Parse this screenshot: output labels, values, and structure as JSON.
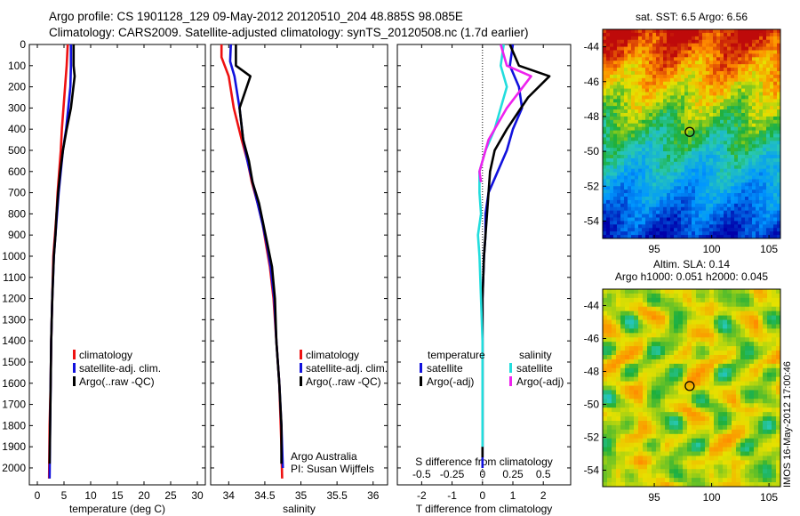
{
  "header": {
    "line1": "Argo profile: CS 1901128_129 09-May-2012 20120510_204 48.885S 98.085E",
    "line2": "Climatology: CARS2009. Satellite-adjusted climatology: synTS_20120508.nc (1.7d earlier)"
  },
  "colors": {
    "climatology": "#ee1111",
    "satellite": "#1111dd",
    "argo": "#000000",
    "cyan": "#22dddd",
    "magenta": "#ee22ee"
  },
  "imos_label": "IMOS 16-May-2012 17:00:46",
  "chart_data": [
    {
      "id": "temperature",
      "type": "line",
      "xlabel": "temperature (deg C)",
      "xlim": [
        -1.5,
        31.5
      ],
      "ylim": [
        2080,
        0
      ],
      "y_reversed": true,
      "xticks": [
        0,
        5,
        10,
        15,
        20,
        25,
        30
      ],
      "yticks": [
        0,
        100,
        200,
        300,
        400,
        500,
        600,
        700,
        800,
        900,
        1000,
        1100,
        1200,
        1300,
        1400,
        1500,
        1600,
        1700,
        1800,
        1900,
        2000
      ],
      "series": [
        {
          "name": "climatology",
          "color": "#ee1111",
          "x": [
            5.7,
            5.5,
            5.2,
            4.9,
            4.6,
            4.4,
            4.1,
            3.8,
            3.6,
            3.3,
            3.0,
            2.8,
            2.6,
            2.5,
            2.3,
            2.2
          ],
          "y": [
            0,
            100,
            200,
            300,
            400,
            500,
            600,
            700,
            800,
            900,
            1000,
            1200,
            1400,
            1600,
            1800,
            2050
          ]
        },
        {
          "name": "satellite-adj. clim.",
          "color": "#1111dd",
          "x": [
            6.3,
            6.3,
            6.2,
            5.8,
            5.4,
            4.8,
            4.4,
            4.0,
            3.7,
            3.4,
            3.1,
            2.8,
            2.6,
            2.5,
            2.4,
            2.3
          ],
          "y": [
            0,
            100,
            200,
            300,
            400,
            500,
            600,
            700,
            800,
            900,
            1000,
            1200,
            1400,
            1600,
            1800,
            2050
          ]
        },
        {
          "name": "Argo(..raw -QC)",
          "color": "#000000",
          "x": [
            6.8,
            6.8,
            7.0,
            6.3,
            5.5,
            4.8,
            4.3,
            3.9,
            3.6,
            3.4,
            3.1,
            2.8,
            2.6,
            2.5,
            2.4,
            2.3
          ],
          "y": [
            0,
            100,
            150,
            300,
            400,
            500,
            600,
            700,
            800,
            900,
            1000,
            1200,
            1400,
            1600,
            1800,
            1980
          ]
        }
      ],
      "legend": [
        "climatology",
        "satellite-adj. clim.",
        "Argo(..raw -QC)"
      ]
    },
    {
      "id": "salinity",
      "type": "line",
      "xlabel": "salinity",
      "xlim": [
        33.75,
        36.2
      ],
      "ylim": [
        2080,
        0
      ],
      "y_reversed": true,
      "xticks": [
        34,
        34.5,
        35,
        35.5,
        36
      ],
      "series": [
        {
          "name": "climatology",
          "color": "#ee1111",
          "x": [
            33.9,
            33.9,
            34.0,
            34.07,
            34.18,
            34.26,
            34.32,
            34.4,
            34.47,
            34.52,
            34.57,
            34.62,
            34.66,
            34.7,
            34.72,
            34.73,
            34.74
          ],
          "y": [
            0,
            60,
            150,
            300,
            450,
            550,
            650,
            750,
            850,
            950,
            1050,
            1200,
            1400,
            1600,
            1800,
            1900,
            2050
          ]
        },
        {
          "name": "satellite-adj. clim.",
          "color": "#1111dd",
          "x": [
            34.03,
            34.02,
            34.08,
            34.15,
            34.2,
            34.26,
            34.33,
            34.4,
            34.47,
            34.53,
            34.58,
            34.63,
            34.66,
            34.7,
            34.73,
            34.74,
            34.75
          ],
          "y": [
            0,
            80,
            150,
            300,
            450,
            550,
            650,
            750,
            850,
            950,
            1050,
            1200,
            1400,
            1600,
            1800,
            1900,
            2000
          ]
        },
        {
          "name": "Argo(..raw -QC)",
          "color": "#000000",
          "x": [
            34.1,
            34.1,
            34.3,
            34.15,
            34.2,
            34.28,
            34.33,
            34.42,
            34.48,
            34.54,
            34.6,
            34.64,
            34.66,
            34.7,
            34.73,
            34.73
          ],
          "y": [
            0,
            100,
            150,
            300,
            450,
            550,
            650,
            750,
            850,
            950,
            1050,
            1200,
            1400,
            1600,
            1800,
            1980
          ]
        }
      ],
      "legend": [
        "climatology",
        "satellite-adj. clim.",
        "Argo(..raw -QC)"
      ],
      "annotations": [
        "Argo Australia",
        "PI: Susan Wijffels"
      ]
    },
    {
      "id": "difference",
      "type": "line",
      "xlabel": "T difference from climatology",
      "xlabel_top": "S difference from climatology",
      "xlim": [
        -2.8,
        2.9
      ],
      "ylim": [
        2080,
        0
      ],
      "y_reversed": true,
      "xticks": [
        -2,
        -1,
        0,
        1,
        2
      ],
      "xticks_s": [
        -0.5,
        -0.25,
        0,
        0.25,
        0.5
      ],
      "series": [
        {
          "name": "temperature satellite",
          "color": "#1111dd",
          "x": [
            1.0,
            0.9,
            1.2,
            1.3,
            1.0,
            0.8,
            0.5,
            0.2,
            0.1,
            0.1,
            0.05,
            0.0,
            0.0,
            0.0,
            0.0,
            0.0
          ],
          "y": [
            0,
            100,
            200,
            300,
            400,
            500,
            600,
            700,
            800,
            900,
            1000,
            1200,
            1400,
            1600,
            1800,
            2000
          ]
        },
        {
          "name": "temperature Argo(-adj)",
          "color": "#000000",
          "x": [
            0.9,
            1.2,
            2.2,
            1.5,
            0.8,
            0.4,
            0.25,
            0.2,
            0.15,
            0.1,
            0.05,
            0.0,
            0.0,
            0.0,
            0.0,
            0.0
          ],
          "y": [
            0,
            100,
            150,
            250,
            400,
            500,
            600,
            700,
            800,
            900,
            1000,
            1200,
            1400,
            1600,
            1800,
            1950
          ]
        },
        {
          "name": "salinity satellite",
          "color": "#22dddd",
          "x": [
            0.7,
            0.6,
            0.8,
            0.6,
            0.4,
            0.1,
            -0.1,
            -0.1,
            -0.05,
            -0.15,
            -0.1,
            -0.05,
            0.0,
            0.0,
            0.0,
            0.0
          ],
          "y": [
            0,
            100,
            200,
            300,
            400,
            500,
            600,
            700,
            800,
            900,
            1000,
            1200,
            1400,
            1600,
            1800,
            1900
          ]
        },
        {
          "name": "salinity Argo(-adj)",
          "color": "#ee22ee",
          "x": [
            0.6,
            0.8,
            1.6,
            0.8,
            0.2,
            0.0,
            -0.1,
            -0.05
          ],
          "y": [
            0,
            100,
            150,
            300,
            450,
            550,
            600,
            650
          ]
        }
      ],
      "legend_titles": [
        "temperature",
        "salinity"
      ],
      "legend": [
        "satellite",
        "Argo(-adj)",
        "satellite",
        "Argo(-adj)"
      ]
    }
  ],
  "maps": [
    {
      "id": "sst",
      "title": "sat. SST: 6.5 Argo: 6.56",
      "xticks": [
        95,
        100,
        105
      ],
      "yticks": [
        -44,
        -46,
        -48,
        -50,
        -52,
        -54
      ],
      "xlim": [
        90.5,
        106
      ],
      "ylim": [
        -55,
        -43
      ],
      "marker": {
        "lon": 98.085,
        "lat": -48.885
      }
    },
    {
      "id": "sla",
      "title1": "Altim. SLA: 0.14",
      "title2": "Argo h1000: 0.051 h2000: 0.045",
      "xticks": [
        95,
        100,
        105
      ],
      "yticks": [
        -44,
        -46,
        -48,
        -50,
        -52,
        -54
      ],
      "xlim": [
        90.5,
        106
      ],
      "ylim": [
        -55,
        -43
      ],
      "marker": {
        "lon": 98.085,
        "lat": -48.885
      }
    }
  ]
}
